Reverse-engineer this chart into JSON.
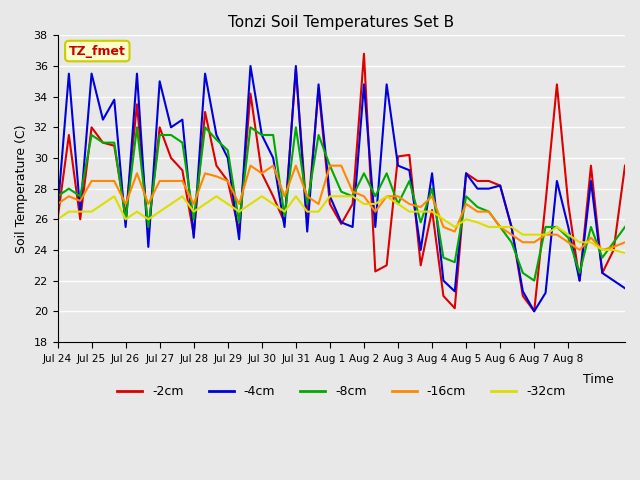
{
  "title": "Tonzi Soil Temperatures Set B",
  "xlabel": "Time",
  "ylabel": "Soil Temperature (C)",
  "ylim": [
    18,
    38
  ],
  "annotation": "TZ_fmet",
  "annotation_color": "#cc0000",
  "annotation_bg": "#ffffcc",
  "annotation_border": "#cccc00",
  "bg_color": "#e8e8e8",
  "plot_bg": "#e8e8e8",
  "series": [
    {
      "label": "-2cm",
      "color": "#dd0000",
      "linewidth": 1.5,
      "data": [
        26.0,
        31.5,
        26.0,
        32.0,
        31.0,
        30.8,
        26.2,
        33.5,
        25.2,
        32.0,
        30.0,
        29.2,
        25.0,
        33.0,
        29.5,
        28.5,
        25.2,
        34.2,
        29.0,
        27.5,
        25.8,
        35.8,
        26.0,
        34.5,
        27.0,
        25.7,
        27.0,
        36.8,
        22.6,
        23.0,
        30.1,
        30.2,
        23.0,
        26.6,
        21.0,
        20.2,
        29.0,
        28.5,
        28.5,
        28.2,
        25.5,
        21.0,
        20.0,
        27.1,
        34.8,
        27.0,
        22.0,
        29.5,
        22.5,
        24.0,
        29.5
      ]
    },
    {
      "label": "-4cm",
      "color": "#0000dd",
      "linewidth": 1.5,
      "data": [
        26.5,
        35.5,
        26.5,
        35.5,
        32.5,
        33.8,
        25.5,
        35.5,
        24.2,
        35.0,
        32.0,
        32.5,
        24.8,
        35.5,
        31.5,
        30.0,
        24.7,
        36.0,
        31.5,
        30.0,
        25.5,
        36.0,
        25.2,
        34.8,
        27.5,
        25.8,
        25.5,
        34.8,
        25.5,
        34.8,
        29.5,
        29.2,
        24.0,
        29.0,
        22.0,
        21.3,
        29.0,
        28.0,
        28.0,
        28.2,
        25.5,
        21.3,
        20.0,
        21.2,
        28.5,
        25.5,
        22.0,
        28.5,
        22.5,
        22.0,
        21.5
      ]
    },
    {
      "label": "-8cm",
      "color": "#00aa00",
      "linewidth": 1.5,
      "data": [
        27.5,
        28.0,
        27.5,
        31.5,
        31.0,
        31.0,
        26.0,
        32.0,
        25.5,
        31.5,
        31.5,
        31.0,
        26.0,
        32.0,
        31.2,
        30.5,
        25.8,
        32.0,
        31.5,
        31.5,
        26.2,
        32.0,
        27.0,
        31.5,
        29.5,
        27.8,
        27.5,
        29.0,
        27.5,
        29.0,
        27.0,
        28.5,
        25.8,
        28.0,
        23.5,
        23.2,
        27.5,
        26.8,
        26.5,
        25.5,
        24.5,
        22.5,
        22.0,
        25.5,
        25.5,
        24.8,
        22.5,
        25.5,
        23.5,
        24.5,
        25.5
      ]
    },
    {
      "label": "-16cm",
      "color": "#ff8800",
      "linewidth": 1.5,
      "data": [
        27.0,
        27.5,
        27.2,
        28.5,
        28.5,
        28.5,
        27.0,
        29.0,
        27.0,
        28.5,
        28.5,
        28.5,
        27.0,
        29.0,
        28.8,
        28.5,
        27.0,
        29.5,
        29.0,
        29.5,
        27.5,
        29.5,
        27.5,
        27.0,
        29.5,
        29.5,
        27.8,
        27.5,
        26.5,
        27.5,
        27.5,
        27.0,
        26.8,
        27.5,
        25.5,
        25.2,
        27.0,
        26.5,
        26.5,
        25.5,
        25.0,
        24.5,
        24.5,
        25.0,
        25.0,
        24.5,
        24.0,
        24.8,
        24.0,
        24.2,
        24.5
      ]
    },
    {
      "label": "-32cm",
      "color": "#dddd00",
      "linewidth": 1.5,
      "data": [
        26.0,
        26.5,
        26.5,
        26.5,
        27.0,
        27.5,
        26.0,
        26.5,
        26.0,
        26.5,
        27.0,
        27.5,
        26.5,
        27.0,
        27.5,
        27.0,
        26.5,
        27.0,
        27.5,
        27.0,
        26.5,
        27.5,
        26.5,
        26.5,
        27.5,
        27.5,
        27.5,
        27.0,
        27.0,
        27.5,
        27.0,
        26.5,
        26.5,
        26.5,
        26.0,
        25.5,
        26.0,
        25.8,
        25.5,
        25.5,
        25.5,
        25.0,
        25.0,
        25.0,
        25.5,
        25.0,
        24.5,
        24.5,
        24.0,
        24.0,
        23.8
      ]
    }
  ],
  "xtick_labels": [
    "Jul 24",
    "Jul 25",
    "Jul 26",
    "Jul 27",
    "Jul 28",
    "Jul 29",
    "Jul 30",
    "Jul 31",
    "Aug 1",
    "Aug 2",
    "Aug 3",
    "Aug 4",
    "Aug 5",
    "Aug 6",
    "Aug 7",
    "Aug 8"
  ],
  "xtick_positions": [
    0,
    3,
    6,
    9,
    12,
    15,
    18,
    21,
    24,
    27,
    30,
    33,
    36,
    39,
    42,
    45
  ],
  "grid_color": "#ffffff",
  "ytick_values": [
    18,
    20,
    22,
    24,
    26,
    28,
    30,
    32,
    34,
    36,
    38
  ],
  "legend_colors": [
    "#dd0000",
    "#0000dd",
    "#00aa00",
    "#ff8800",
    "#dddd00"
  ],
  "legend_labels": [
    "-2cm",
    "-4cm",
    "-8cm",
    "-16cm",
    "-32cm"
  ]
}
